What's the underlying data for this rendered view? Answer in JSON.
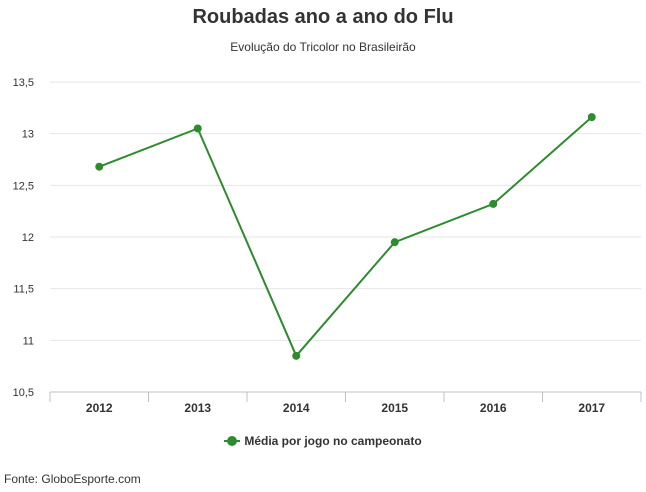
{
  "chart_data": {
    "type": "line",
    "title": "Roubadas ano a ano do Flu",
    "subtitle": "Evolução do Tricolor no Brasileirão",
    "categories": [
      "2012",
      "2013",
      "2014",
      "2015",
      "2016",
      "2017"
    ],
    "series": [
      {
        "name": "Média por jogo no campeonato",
        "values": [
          12.68,
          13.05,
          10.85,
          11.95,
          12.32,
          13.16
        ],
        "color": "#2e8b2e"
      }
    ],
    "y_ticks": [
      "10,5",
      "11",
      "11,5",
      "12",
      "12,5",
      "13",
      "13,5"
    ],
    "y_tick_values": [
      10.5,
      11,
      11.5,
      12,
      12.5,
      13,
      13.5
    ],
    "ylim": [
      10.5,
      13.5
    ],
    "grid": true,
    "legend": "bottom-center",
    "source": "Fonte: GloboEsporte.com"
  }
}
